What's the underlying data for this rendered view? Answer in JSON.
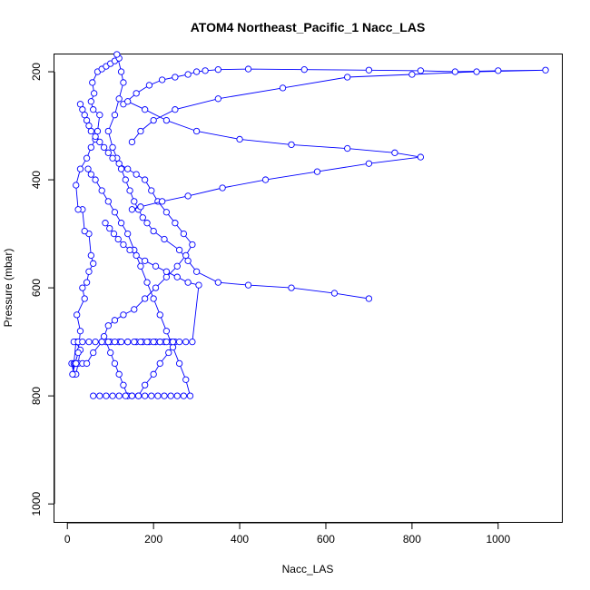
{
  "chart_data": {
    "type": "line",
    "title": "ATOM4 Northeast_Pacific_1 Nacc_LAS",
    "xlabel": "Nacc_LAS",
    "ylabel": "Pressure (mbar)",
    "xlim": [
      -30,
      1150
    ],
    "ylim": [
      1035,
      168
    ],
    "y_reversed": true,
    "grid": false,
    "x_ticks": [
      0,
      200,
      400,
      600,
      800,
      1000
    ],
    "y_ticks": [
      200,
      400,
      600,
      800,
      1000
    ],
    "line_color": "#0000ff",
    "marker": "open-circle",
    "series": [
      {
        "x": [
          10,
          15,
          20,
          25,
          30,
          20,
          15,
          12,
          18,
          25,
          30,
          22,
          40,
          35,
          45,
          50,
          60,
          55,
          50,
          40,
          35,
          25,
          20,
          30,
          45,
          55,
          65,
          70,
          75,
          60,
          55,
          62,
          58,
          70,
          80,
          90,
          100,
          110,
          120,
          115,
          125,
          130,
          120,
          110,
          95,
          105,
          115,
          125,
          135,
          145,
          155,
          165,
          175,
          185,
          200,
          225,
          260,
          280,
          300,
          350,
          420,
          520,
          620,
          700
        ],
        "y": [
          740,
          760,
          760,
          740,
          715,
          700,
          740,
          760,
          740,
          720,
          680,
          650,
          620,
          600,
          590,
          570,
          555,
          540,
          500,
          495,
          455,
          455,
          410,
          380,
          360,
          340,
          325,
          310,
          280,
          270,
          255,
          240,
          220,
          200,
          195,
          190,
          185,
          180,
          175,
          168,
          200,
          220,
          250,
          280,
          310,
          340,
          360,
          380,
          400,
          420,
          440,
          455,
          470,
          480,
          495,
          510,
          530,
          550,
          570,
          590,
          595,
          600,
          610,
          620
        ]
      },
      {
        "x": [
          20,
          35,
          45,
          60,
          80,
          100,
          120,
          140,
          160,
          175,
          190,
          205,
          215,
          225,
          240,
          250,
          235,
          215,
          200,
          180,
          165,
          150,
          140,
          130,
          120,
          110,
          100,
          90,
          85,
          95,
          110,
          130,
          155,
          180,
          205,
          230,
          255,
          275,
          290,
          270,
          250,
          230,
          210,
          195,
          180,
          160,
          140,
          120,
          105,
          95,
          85,
          75,
          65,
          55,
          50,
          45,
          40,
          35,
          30
        ],
        "y": [
          740,
          740,
          740,
          720,
          700,
          700,
          700,
          700,
          700,
          700,
          700,
          700,
          700,
          700,
          700,
          700,
          720,
          740,
          760,
          780,
          800,
          800,
          800,
          780,
          760,
          740,
          720,
          700,
          690,
          670,
          660,
          650,
          640,
          620,
          600,
          580,
          560,
          540,
          520,
          500,
          480,
          460,
          440,
          420,
          400,
          390,
          380,
          370,
          360,
          350,
          340,
          330,
          320,
          310,
          300,
          290,
          280,
          270,
          260
        ]
      },
      {
        "x": [
          130,
          160,
          190,
          220,
          250,
          280,
          300,
          320,
          350,
          420,
          550,
          700,
          820,
          900,
          1000,
          1110,
          950,
          800,
          650,
          500,
          350,
          250,
          200,
          170,
          150
        ],
        "y": [
          260,
          240,
          225,
          215,
          210,
          205,
          200,
          198,
          196,
          195,
          196,
          197,
          198,
          200,
          198,
          197,
          200,
          205,
          210,
          230,
          250,
          270,
          290,
          310,
          330
        ]
      },
      {
        "x": [
          140,
          180,
          230,
          300,
          400,
          520,
          650,
          760,
          820,
          700,
          580,
          460,
          360,
          280,
          220,
          170,
          150
        ],
        "y": [
          255,
          270,
          290,
          310,
          325,
          335,
          342,
          350,
          358,
          370,
          385,
          400,
          415,
          430,
          440,
          450,
          455
        ]
      },
      {
        "x": [
          60,
          75,
          90,
          105,
          120,
          135,
          150,
          165,
          180,
          195,
          210,
          225,
          240,
          255,
          270,
          285,
          275,
          260,
          245,
          230,
          215,
          200,
          185,
          170,
          155,
          140,
          125,
          110,
          95,
          80,
          65,
          55,
          48
        ],
        "y": [
          800,
          800,
          800,
          800,
          800,
          800,
          800,
          800,
          800,
          800,
          800,
          800,
          800,
          800,
          800,
          800,
          770,
          740,
          710,
          680,
          650,
          620,
          590,
          560,
          530,
          500,
          480,
          460,
          440,
          420,
          400,
          390,
          380
        ]
      },
      {
        "x": [
          15,
          25,
          35,
          50,
          65,
          80,
          95,
          110,
          125,
          140,
          155,
          170,
          185,
          200,
          215,
          230,
          245,
          260,
          275,
          290,
          305,
          280,
          255,
          230,
          205,
          180,
          160,
          145,
          130,
          118,
          108,
          98,
          88
        ],
        "y": [
          700,
          700,
          700,
          700,
          700,
          700,
          700,
          700,
          700,
          700,
          700,
          700,
          700,
          700,
          700,
          700,
          700,
          700,
          700,
          700,
          595,
          590,
          580,
          570,
          560,
          550,
          540,
          530,
          520,
          510,
          500,
          490,
          480
        ]
      }
    ]
  }
}
